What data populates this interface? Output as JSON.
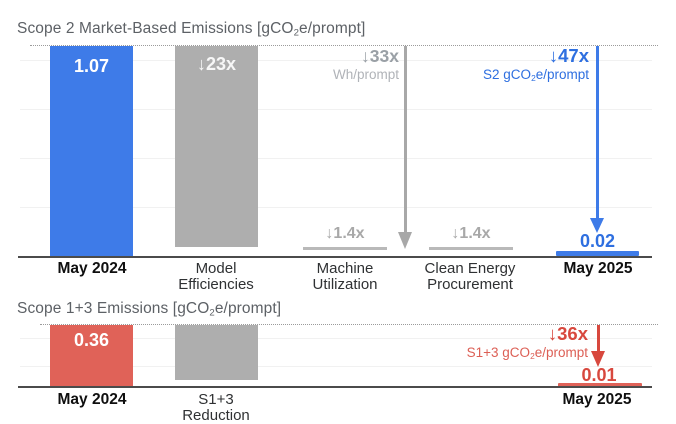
{
  "chart_data": [
    {
      "type": "bar",
      "variant": "waterfall-reduction",
      "title": "Scope 2 Market-Based Emissions [gCO2e/prompt]",
      "title_parts": {
        "pre": "Scope 2 Market-Based Emissions [gCO",
        "sub": "2",
        "post": "e/prompt]"
      },
      "ylabel": "gCO2e/prompt",
      "ylim": [
        0,
        1.07
      ],
      "grid": true,
      "baseline_dotted_at": 1.07,
      "categories": [
        "May 2024",
        "Model Efficiencies",
        "Machine Utilization",
        "Clean Energy Procurement",
        "May 2025"
      ],
      "bars": [
        {
          "category": "May 2024",
          "label_lines": [
            "May 2024"
          ],
          "value": 1.07,
          "value_label": "1.07",
          "color": "#3E7BE8",
          "kind": "total"
        },
        {
          "category": "Model Efficiencies",
          "label_lines": [
            "Model",
            "Efficiencies"
          ],
          "reduction_factor": 23,
          "reduction_label": "↓23x",
          "color": "#AEAEAE",
          "kind": "reduction"
        },
        {
          "category": "Machine Utilization",
          "label_lines": [
            "Machine",
            "Utilization"
          ],
          "reduction_factor": 1.4,
          "reduction_label": "↓1.4x",
          "color": "#B9B9B9",
          "kind": "reduction-small"
        },
        {
          "category": "Clean Energy Procurement",
          "label_lines": [
            "Clean Energy",
            "Procurement"
          ],
          "reduction_factor": 1.4,
          "reduction_label": "↓1.4x",
          "color": "#B9B9B9",
          "kind": "reduction-small"
        },
        {
          "category": "May 2025",
          "label_lines": [
            "May 2025"
          ],
          "value": 0.02,
          "value_label": "0.02",
          "color": "#3E7BE8",
          "kind": "total"
        }
      ],
      "annotations": [
        {
          "id": "wh-reduction",
          "factor_label": "↓33x",
          "unit_label": "Wh/prompt",
          "color": "#9AA0A6"
        },
        {
          "id": "s2-reduction",
          "factor_label": "↓47x",
          "unit_parts": {
            "pre": "S2 gCO",
            "sub": "2",
            "post": "e/prompt"
          },
          "color": "#2E6FE0"
        }
      ]
    },
    {
      "type": "bar",
      "variant": "waterfall-reduction",
      "title": "Scope 1+3 Emissions [gCO2e/prompt]",
      "title_parts": {
        "pre": "Scope 1+3 Emissions [gCO",
        "sub": "2",
        "post": "e/prompt]"
      },
      "ylabel": "gCO2e/prompt",
      "ylim": [
        0,
        0.36
      ],
      "grid": true,
      "baseline_dotted_at": 0.36,
      "categories": [
        "May 2024",
        "S1+3 Reduction",
        "May 2025"
      ],
      "bars": [
        {
          "category": "May 2024",
          "label_lines": [
            "May 2024"
          ],
          "value": 0.36,
          "value_label": "0.36",
          "color": "#E06258",
          "kind": "total"
        },
        {
          "category": "S1+3 Reduction",
          "label_lines": [
            "S1+3",
            "Reduction"
          ],
          "reduction_factor": 36,
          "color": "#AEAEAE",
          "kind": "reduction"
        },
        {
          "category": "May 2025",
          "label_lines": [
            "May 2025"
          ],
          "value": 0.01,
          "value_label": "0.01",
          "color": "#E06258",
          "kind": "total"
        }
      ],
      "annotations": [
        {
          "id": "s13-reduction",
          "factor_label": "↓36x",
          "unit_parts": {
            "pre": "S1+3 gCO",
            "sub": "2",
            "post": "e/prompt"
          },
          "color": "#D8483E"
        }
      ]
    }
  ],
  "colors": {
    "scope2_bar": "#3E7BE8",
    "scope2_text": "#2E6FE0",
    "scope13_bar": "#E06258",
    "scope13_text": "#D8483E",
    "reduction_bar": "#AEAEAE",
    "gray_annotation": "#9AA0A6",
    "axis": "#4B4B4B"
  }
}
